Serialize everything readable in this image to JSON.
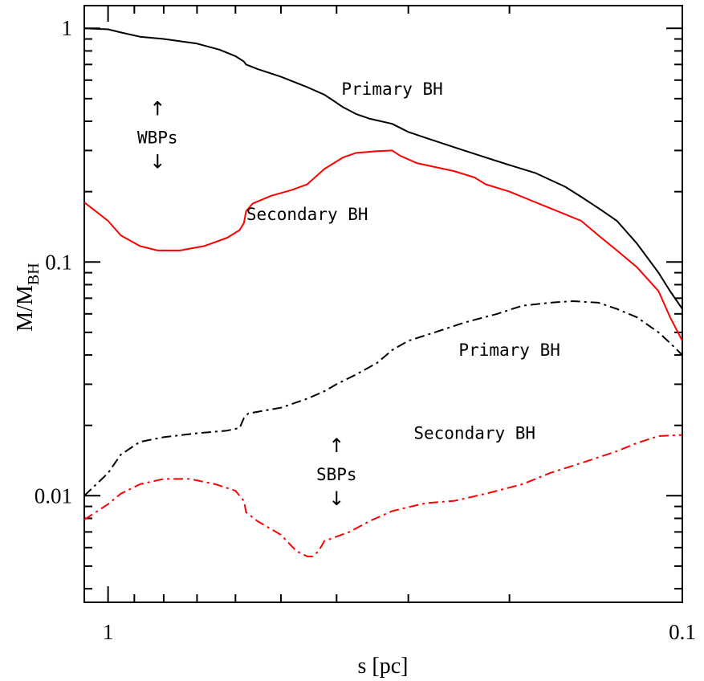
{
  "chart_data": {
    "type": "line",
    "title": "",
    "xlabel": "s [pc]",
    "ylabel": "M/M_BH",
    "ylabel_main": "M/M",
    "ylabel_sub": "BH",
    "x_scale": "log",
    "y_scale": "log",
    "xlim": [
      1.1,
      0.1
    ],
    "ylim": [
      0.0035,
      1.25
    ],
    "x_ticklabels": [
      "1",
      "0.1"
    ],
    "y_ticklabels": [
      "1",
      "0.1",
      "0.01"
    ],
    "grid": false,
    "series": [
      {
        "group": "WBPs",
        "label": "Primary BH",
        "color": "#000000",
        "style": "solid",
        "points": [
          [
            1.1,
            1.0
          ],
          [
            1.0,
            0.99
          ],
          [
            0.95,
            0.96
          ],
          [
            0.88,
            0.92
          ],
          [
            0.8,
            0.9
          ],
          [
            0.7,
            0.86
          ],
          [
            0.64,
            0.81
          ],
          [
            0.6,
            0.76
          ],
          [
            0.58,
            0.72
          ],
          [
            0.575,
            0.7
          ],
          [
            0.55,
            0.67
          ],
          [
            0.5,
            0.62
          ],
          [
            0.45,
            0.56
          ],
          [
            0.42,
            0.52
          ],
          [
            0.4,
            0.48
          ],
          [
            0.39,
            0.46
          ],
          [
            0.37,
            0.43
          ],
          [
            0.35,
            0.41
          ],
          [
            0.32,
            0.39
          ],
          [
            0.3,
            0.36
          ],
          [
            0.28,
            0.34
          ],
          [
            0.25,
            0.31
          ],
          [
            0.22,
            0.28
          ],
          [
            0.2,
            0.26
          ],
          [
            0.18,
            0.24
          ],
          [
            0.16,
            0.21
          ],
          [
            0.15,
            0.19
          ],
          [
            0.14,
            0.17
          ],
          [
            0.13,
            0.15
          ],
          [
            0.12,
            0.12
          ],
          [
            0.11,
            0.09
          ],
          [
            0.105,
            0.075
          ],
          [
            0.1,
            0.063
          ]
        ]
      },
      {
        "group": "WBPs",
        "label": "Secondary BH",
        "color": "#ff0000",
        "style": "solid",
        "points": [
          [
            1.1,
            0.18
          ],
          [
            1.0,
            0.15
          ],
          [
            0.95,
            0.13
          ],
          [
            0.88,
            0.117
          ],
          [
            0.82,
            0.112
          ],
          [
            0.75,
            0.112
          ],
          [
            0.68,
            0.117
          ],
          [
            0.62,
            0.127
          ],
          [
            0.59,
            0.137
          ],
          [
            0.58,
            0.147
          ],
          [
            0.575,
            0.165
          ],
          [
            0.56,
            0.178
          ],
          [
            0.52,
            0.192
          ],
          [
            0.48,
            0.203
          ],
          [
            0.45,
            0.215
          ],
          [
            0.42,
            0.25
          ],
          [
            0.39,
            0.28
          ],
          [
            0.37,
            0.293
          ],
          [
            0.34,
            0.298
          ],
          [
            0.32,
            0.3
          ],
          [
            0.31,
            0.285
          ],
          [
            0.29,
            0.265
          ],
          [
            0.27,
            0.255
          ],
          [
            0.25,
            0.245
          ],
          [
            0.23,
            0.23
          ],
          [
            0.22,
            0.215
          ],
          [
            0.2,
            0.2
          ],
          [
            0.18,
            0.18
          ],
          [
            0.16,
            0.16
          ],
          [
            0.15,
            0.15
          ],
          [
            0.14,
            0.13
          ],
          [
            0.13,
            0.112
          ],
          [
            0.12,
            0.095
          ],
          [
            0.11,
            0.075
          ],
          [
            0.105,
            0.058
          ],
          [
            0.1,
            0.046
          ]
        ]
      },
      {
        "group": "SBPs",
        "label": "Primary BH",
        "color": "#000000",
        "style": "dashdot",
        "points": [
          [
            1.1,
            0.01
          ],
          [
            1.0,
            0.0125
          ],
          [
            0.95,
            0.015
          ],
          [
            0.88,
            0.017
          ],
          [
            0.8,
            0.0178
          ],
          [
            0.7,
            0.0185
          ],
          [
            0.62,
            0.019
          ],
          [
            0.59,
            0.0195
          ],
          [
            0.58,
            0.0215
          ],
          [
            0.57,
            0.0225
          ],
          [
            0.5,
            0.0238
          ],
          [
            0.45,
            0.026
          ],
          [
            0.42,
            0.028
          ],
          [
            0.4,
            0.03
          ],
          [
            0.37,
            0.033
          ],
          [
            0.34,
            0.037
          ],
          [
            0.32,
            0.042
          ],
          [
            0.3,
            0.046
          ],
          [
            0.27,
            0.05
          ],
          [
            0.24,
            0.055
          ],
          [
            0.21,
            0.06
          ],
          [
            0.19,
            0.065
          ],
          [
            0.17,
            0.067
          ],
          [
            0.155,
            0.068
          ],
          [
            0.14,
            0.067
          ],
          [
            0.13,
            0.063
          ],
          [
            0.12,
            0.058
          ],
          [
            0.11,
            0.05
          ],
          [
            0.105,
            0.045
          ],
          [
            0.1,
            0.04
          ]
        ]
      },
      {
        "group": "SBPs",
        "label": "Secondary BH",
        "color": "#ff0000",
        "style": "dashdot",
        "points": [
          [
            1.1,
            0.0079
          ],
          [
            1.0,
            0.0092
          ],
          [
            0.95,
            0.0102
          ],
          [
            0.88,
            0.0112
          ],
          [
            0.8,
            0.0118
          ],
          [
            0.72,
            0.0118
          ],
          [
            0.65,
            0.0112
          ],
          [
            0.6,
            0.0105
          ],
          [
            0.58,
            0.0095
          ],
          [
            0.575,
            0.0085
          ],
          [
            0.55,
            0.0078
          ],
          [
            0.5,
            0.0068
          ],
          [
            0.47,
            0.0058
          ],
          [
            0.45,
            0.0055
          ],
          [
            0.44,
            0.0055
          ],
          [
            0.43,
            0.0058
          ],
          [
            0.42,
            0.0064
          ],
          [
            0.38,
            0.007
          ],
          [
            0.35,
            0.0078
          ],
          [
            0.32,
            0.0086
          ],
          [
            0.28,
            0.0093
          ],
          [
            0.25,
            0.0095
          ],
          [
            0.22,
            0.0102
          ],
          [
            0.19,
            0.0112
          ],
          [
            0.17,
            0.0125
          ],
          [
            0.15,
            0.0138
          ],
          [
            0.13,
            0.0155
          ],
          [
            0.12,
            0.0168
          ],
          [
            0.11,
            0.018
          ],
          [
            0.1,
            0.0182
          ]
        ]
      }
    ],
    "annotations": [
      {
        "text": "Primary BH",
        "x": 0.32,
        "y": 0.55
      },
      {
        "text": "Secondary BH",
        "x": 0.45,
        "y": 0.16
      },
      {
        "text": "WBPs",
        "x": 0.82,
        "y": 0.34
      },
      {
        "text": "Primary BH",
        "x": 0.2,
        "y": 0.042
      },
      {
        "text": "Secondary BH",
        "x": 0.23,
        "y": 0.0185
      },
      {
        "text": "SBPs",
        "x": 0.4,
        "y": 0.0123
      }
    ],
    "arrows": [
      {
        "label": "WBPs",
        "x": 0.82,
        "y": 0.34
      },
      {
        "label": "SBPs",
        "x": 0.4,
        "y": 0.0123
      }
    ]
  }
}
